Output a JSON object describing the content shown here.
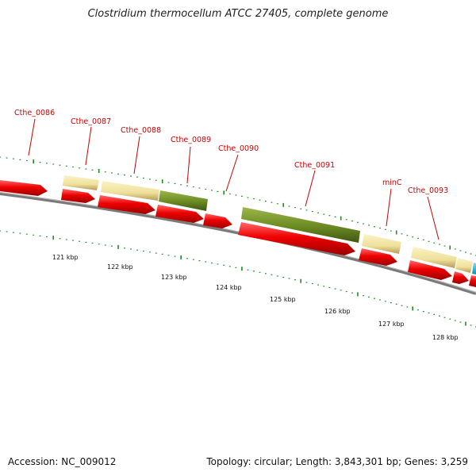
{
  "title": "Clostridium thermocellum ATCC 27405, complete genome",
  "footer": {
    "accession": "Accession: NC_009012",
    "topology": "Topology: circular; Length: 3,843,301 bp; Genes: 3,259"
  },
  "colors": {
    "forward_cds": "#ff0000",
    "feature_yellow": "#f2e6a2",
    "feature_olive": "#6e8c26",
    "feature_cyan": "#19b5d9",
    "backbone": "#808080",
    "tick": "#1e8c1e",
    "gene_label": "#cc0000"
  },
  "kbp_labels": [
    "121 kbp",
    "122 kbp",
    "123 kbp",
    "124 kbp",
    "125 kbp",
    "126 kbp",
    "127 kbp",
    "128 kbp"
  ],
  "gene_labels": [
    "Cthe_0086",
    "Cthe_0087",
    "Cthe_0088",
    "Cthe_0089",
    "Cthe_0090",
    "Cthe_0091",
    "minC",
    "Cthe_0093"
  ]
}
